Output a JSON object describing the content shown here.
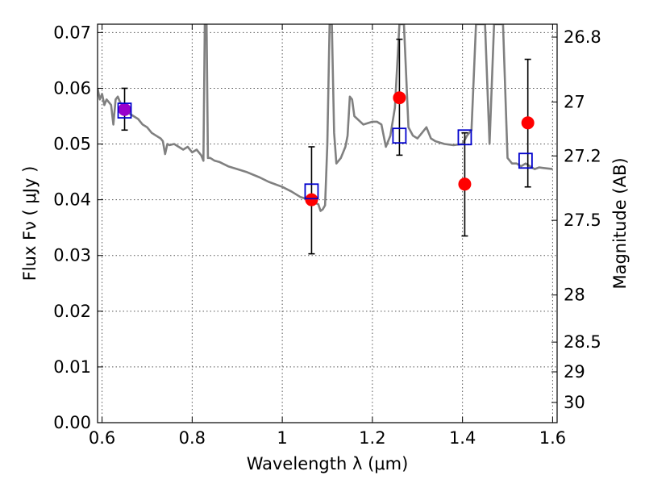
{
  "chart_data": {
    "type": "scatter",
    "xlabel": "Wavelength  λ (μm)",
    "ylabel": "Flux  Fν  ( μJy )",
    "ylabel_right": "Magnitude (AB)",
    "xlim": [
      0.59,
      1.61
    ],
    "ylim": [
      0.0,
      0.0715
    ],
    "x_ticks": [
      0.6,
      0.8,
      1.0,
      1.2,
      1.4,
      1.6
    ],
    "x_tick_labels": [
      "0.6",
      "0.8",
      "1",
      "1.2",
      "1.4",
      "1.6"
    ],
    "y_ticks": [
      0.0,
      0.01,
      0.02,
      0.03,
      0.04,
      0.05,
      0.06,
      0.07
    ],
    "y_tick_labels": [
      "0.00",
      "0.01",
      "0.02",
      "0.03",
      "0.04",
      "0.05",
      "0.06",
      "0.07"
    ],
    "right_ticks": [
      26.8,
      27.0,
      27.2,
      27.5,
      28.0,
      28.5,
      29.0,
      30.0
    ],
    "right_tick_labels": [
      "26.8",
      "27",
      "27.2",
      "27.5",
      "28",
      "28.5",
      "29",
      "30"
    ],
    "grid": true,
    "colors": {
      "model": "#808080",
      "observed": "#ff0000",
      "model_band": "#0000cc",
      "errorbar": "#000000",
      "overlap": "#9900cc"
    },
    "series": [
      {
        "kind": "line",
        "x": [
          0.59,
          0.595,
          0.6,
          0.605,
          0.61,
          0.615,
          0.62,
          0.625,
          0.63,
          0.635,
          0.64,
          0.65,
          0.66,
          0.67,
          0.68,
          0.69,
          0.7,
          0.71,
          0.72,
          0.73,
          0.735,
          0.74,
          0.745,
          0.75,
          0.76,
          0.77,
          0.78,
          0.79,
          0.8,
          0.81,
          0.82,
          0.825,
          0.828,
          0.83,
          0.832,
          0.835,
          0.84,
          0.85,
          0.86,
          0.88,
          0.9,
          0.92,
          0.95,
          0.97,
          1.0,
          1.02,
          1.04,
          1.06,
          1.07,
          1.08,
          1.085,
          1.09,
          1.095,
          1.1,
          1.105,
          1.11,
          1.115,
          1.12,
          1.13,
          1.14,
          1.145,
          1.15,
          1.155,
          1.16,
          1.18,
          1.2,
          1.21,
          1.22,
          1.23,
          1.24,
          1.25,
          1.26,
          1.27,
          1.28,
          1.29,
          1.3,
          1.31,
          1.32,
          1.33,
          1.34,
          1.36,
          1.38,
          1.4,
          1.41,
          1.42,
          1.43,
          1.44,
          1.45,
          1.46,
          1.47,
          1.48,
          1.49,
          1.5,
          1.51,
          1.52,
          1.53,
          1.54,
          1.55,
          1.56,
          1.57,
          1.58,
          1.6
        ],
        "values": [
          0.06,
          0.058,
          0.059,
          0.057,
          0.058,
          0.0575,
          0.057,
          0.0535,
          0.058,
          0.0585,
          0.0575,
          0.0565,
          0.0555,
          0.055,
          0.0545,
          0.0535,
          0.053,
          0.052,
          0.0515,
          0.051,
          0.0505,
          0.0482,
          0.05,
          0.0498,
          0.05,
          0.0495,
          0.049,
          0.0495,
          0.0485,
          0.049,
          0.048,
          0.047,
          0.0715,
          0.0715,
          0.0715,
          0.0475,
          0.0475,
          0.047,
          0.0468,
          0.046,
          0.0455,
          0.045,
          0.044,
          0.0432,
          0.0423,
          0.0415,
          0.0405,
          0.04,
          0.0395,
          0.0392,
          0.038,
          0.0383,
          0.039,
          0.05,
          0.0715,
          0.0715,
          0.052,
          0.0465,
          0.0475,
          0.0495,
          0.0515,
          0.0585,
          0.058,
          0.055,
          0.0535,
          0.054,
          0.054,
          0.0535,
          0.0495,
          0.0515,
          0.0565,
          0.0715,
          0.0715,
          0.053,
          0.0515,
          0.051,
          0.052,
          0.053,
          0.051,
          0.0505,
          0.05,
          0.0498,
          0.05,
          0.0515,
          0.0525,
          0.0715,
          0.0715,
          0.0715,
          0.05,
          0.0715,
          0.0715,
          0.0715,
          0.0475,
          0.0465,
          0.0465,
          0.046,
          0.0465,
          0.046,
          0.0455,
          0.0458,
          0.0457,
          0.0455
        ]
      },
      {
        "kind": "points",
        "x": [
          0.65,
          1.065,
          1.26,
          1.405,
          1.545
        ],
        "values": [
          0.0562,
          0.04,
          0.0583,
          0.0428,
          0.0538
        ],
        "err_low": [
          0.0525,
          0.0303,
          0.048,
          0.0335,
          0.0423
        ],
        "err_high": [
          0.06,
          0.0495,
          0.0688,
          0.052,
          0.0652
        ]
      },
      {
        "kind": "squares",
        "x": [
          0.65,
          1.065,
          1.26,
          1.405,
          1.54
        ],
        "values": [
          0.056,
          0.0415,
          0.0515,
          0.0512,
          0.047
        ]
      }
    ]
  }
}
